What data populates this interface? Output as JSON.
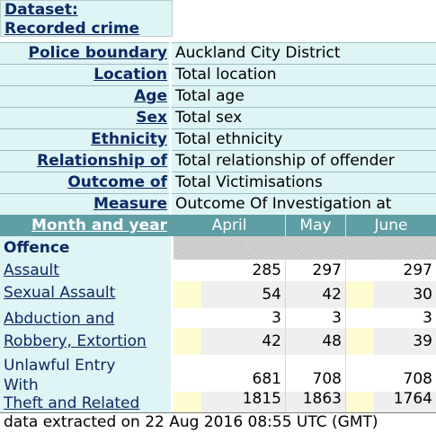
{
  "dataset": {
    "line1": "Dataset:",
    "line2": "Recorded crime"
  },
  "params": [
    {
      "label": "Police boundary",
      "value": "Auckland City District"
    },
    {
      "label": "Location",
      "value": "Total location"
    },
    {
      "label": "Age",
      "value": "Total age"
    },
    {
      "label": "Sex",
      "value": "Total sex"
    },
    {
      "label": "Ethnicity",
      "value": "Total ethnicity"
    },
    {
      "label": "Relationship of",
      "value": "Total relationship of offender"
    },
    {
      "label": "Outcome of",
      "value": "Total Victimisations"
    },
    {
      "label": "Measure",
      "value": "Outcome Of Investigation at"
    }
  ],
  "header": {
    "month_label": "Month and year",
    "months": [
      "April",
      "May",
      "June"
    ]
  },
  "offence_label": "Offence",
  "rows": [
    {
      "label": "Assault",
      "values": [
        "285",
        "297",
        "297"
      ]
    },
    {
      "label": "Sexual Assault",
      "values": [
        "54",
        "42",
        "30"
      ]
    },
    {
      "label": "Abduction and",
      "values": [
        "3",
        "3",
        "3"
      ]
    },
    {
      "label": "Robbery, Extortion",
      "values": [
        "42",
        "48",
        "39"
      ]
    },
    {
      "label": "Unlawful Entry",
      "label2": "With",
      "values": [
        "681",
        "708",
        "708"
      ]
    },
    {
      "label": "Theft and Related",
      "values": [
        "1815",
        "1863",
        "1764"
      ]
    }
  ],
  "footer": "data extracted on 22 Aug 2016 08:55 UTC (GMT)"
}
